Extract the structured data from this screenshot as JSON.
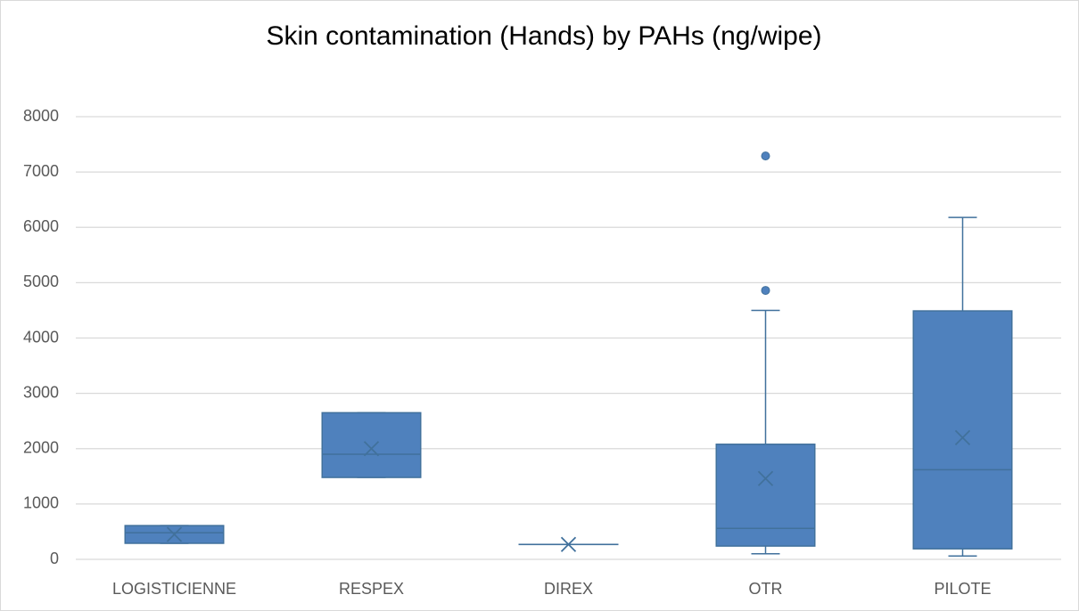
{
  "chart_data": {
    "type": "box",
    "title": "Skin contamination (Hands) by PAHs (ng/wipe)",
    "categories": [
      "LOGISTICIENNE",
      "RESPEX",
      "DIREX",
      "OTR",
      "PILOTE"
    ],
    "color": "#4f81bd",
    "boxes": [
      {
        "min": 290,
        "q1": 290,
        "median": 480,
        "q3": 610,
        "max": 610,
        "mean": 450,
        "outliers": []
      },
      {
        "min": 1480,
        "q1": 1480,
        "median": 1900,
        "q3": 2650,
        "max": 2650,
        "mean": 2000,
        "outliers": []
      },
      {
        "min": 270,
        "q1": 270,
        "median": 270,
        "q3": 270,
        "max": 270,
        "mean": 270,
        "outliers": []
      },
      {
        "min": 100,
        "q1": 240,
        "median": 560,
        "q3": 2080,
        "max": 4500,
        "mean": 1460,
        "outliers": [
          4860,
          7290
        ]
      },
      {
        "min": 60,
        "q1": 190,
        "median": 1620,
        "q3": 4490,
        "max": 6180,
        "mean": 2200,
        "outliers": []
      }
    ],
    "ylim": [
      0,
      8000
    ],
    "yticks": [
      0,
      1000,
      2000,
      3000,
      4000,
      5000,
      6000,
      7000,
      8000
    ],
    "grid": true
  }
}
